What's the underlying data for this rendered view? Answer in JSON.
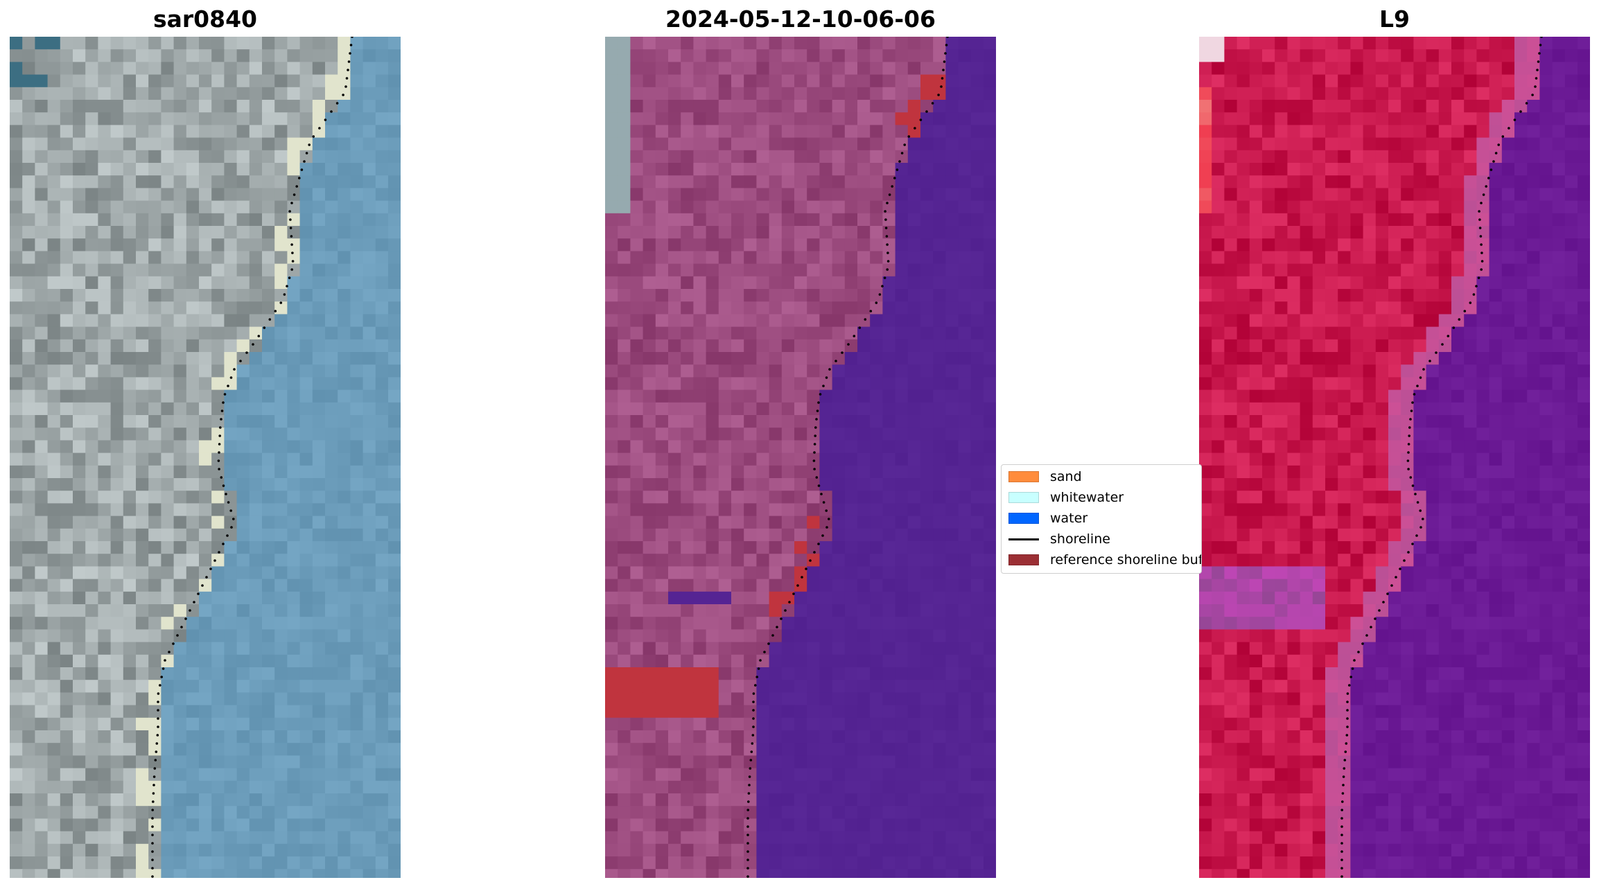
{
  "panels": [
    {
      "title": "sar0840",
      "style": "rgb"
    },
    {
      "title": "2024-05-12-10-06-06",
      "style": "classified"
    },
    {
      "title": "L9",
      "style": "falsecolor"
    }
  ],
  "legend": {
    "items": [
      {
        "label": "sand",
        "kind": "patch",
        "color": "#ff8c3c"
      },
      {
        "label": "whitewater",
        "kind": "patch",
        "color": "#c8ffff"
      },
      {
        "label": "water",
        "kind": "patch",
        "color": "#0066ff"
      },
      {
        "label": "shoreline",
        "kind": "line",
        "color": "#000000"
      },
      {
        "label": "reference shoreline buffer",
        "kind": "patch",
        "color": "#9b2f34"
      }
    ]
  },
  "colors": {
    "land_rgb": "#9ea7a8",
    "water_rgb": "#6b9cba",
    "land_classified": "#9b4b7e",
    "water_classified": "#552493",
    "buffer_red": "#c0343e",
    "land_falsecolor": "#c8184d",
    "water_falsecolor": "#6b1a95"
  }
}
